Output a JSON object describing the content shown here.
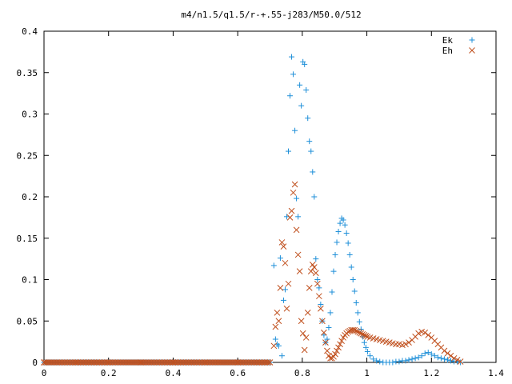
{
  "chart_data": {
    "type": "scatter",
    "title": "m4/n1.5/q1.5/r-+.55-j283/M50.0/512",
    "xlabel": "",
    "ylabel": "",
    "xlim": [
      0,
      1.4
    ],
    "ylim": [
      0,
      0.4
    ],
    "x_ticks": [
      "0",
      "0.2",
      "0.4",
      "0.6",
      "0.8",
      "1",
      "1.2",
      "1.4"
    ],
    "y_ticks": [
      "0",
      "0.05",
      "0.1",
      "0.15",
      "0.2",
      "0.25",
      "0.3",
      "0.35",
      "0.4"
    ],
    "grid": false,
    "legend_position": "top-right",
    "series": [
      {
        "name": "Ek",
        "marker": "plus",
        "color": "#1e8fd8",
        "x": [
          0.0,
          0.1,
          0.2,
          0.3,
          0.4,
          0.5,
          0.6,
          0.7,
          0.712,
          0.717,
          0.722,
          0.727,
          0.732,
          0.737,
          0.742,
          0.747,
          0.752,
          0.757,
          0.762,
          0.767,
          0.772,
          0.777,
          0.782,
          0.787,
          0.792,
          0.797,
          0.802,
          0.807,
          0.812,
          0.817,
          0.822,
          0.827,
          0.832,
          0.837,
          0.842,
          0.847,
          0.852,
          0.857,
          0.862,
          0.867,
          0.872,
          0.877,
          0.882,
          0.887,
          0.892,
          0.897,
          0.902,
          0.907,
          0.912,
          0.917,
          0.922,
          0.927,
          0.932,
          0.937,
          0.942,
          0.947,
          0.952,
          0.957,
          0.962,
          0.967,
          0.972,
          0.977,
          0.982,
          0.987,
          0.992,
          0.997,
          1.002,
          1.01,
          1.02,
          1.03,
          1.04,
          1.05,
          1.06,
          1.07,
          1.08,
          1.09,
          1.1,
          1.11,
          1.12,
          1.13,
          1.14,
          1.15,
          1.16,
          1.17,
          1.18,
          1.19,
          1.2,
          1.21,
          1.22,
          1.23,
          1.24,
          1.25,
          1.26,
          1.27,
          1.28,
          1.29
        ],
        "y": [
          0.0,
          0.0,
          0.0,
          0.0,
          0.0,
          0.0,
          0.0,
          0.0,
          0.117,
          0.028,
          0.022,
          0.02,
          0.126,
          0.008,
          0.075,
          0.088,
          0.176,
          0.255,
          0.322,
          0.369,
          0.348,
          0.28,
          0.198,
          0.176,
          0.335,
          0.31,
          0.363,
          0.36,
          0.329,
          0.295,
          0.267,
          0.255,
          0.23,
          0.2,
          0.125,
          0.1,
          0.09,
          0.07,
          0.05,
          0.033,
          0.024,
          0.028,
          0.042,
          0.06,
          0.085,
          0.11,
          0.13,
          0.145,
          0.158,
          0.168,
          0.174,
          0.172,
          0.166,
          0.156,
          0.144,
          0.13,
          0.115,
          0.1,
          0.086,
          0.072,
          0.06,
          0.049,
          0.04,
          0.031,
          0.024,
          0.018,
          0.013,
          0.008,
          0.004,
          0.002,
          0.001,
          0.0,
          0.0,
          0.0,
          0.0,
          0.001,
          0.001,
          0.002,
          0.002,
          0.003,
          0.004,
          0.005,
          0.006,
          0.008,
          0.011,
          0.012,
          0.01,
          0.008,
          0.006,
          0.005,
          0.004,
          0.003,
          0.002,
          0.001,
          0.001,
          0.0
        ]
      },
      {
        "name": "Eh",
        "marker": "cross",
        "color": "#c0501e",
        "x": [
          0.0,
          0.1,
          0.2,
          0.3,
          0.4,
          0.5,
          0.6,
          0.7,
          0.712,
          0.717,
          0.722,
          0.727,
          0.732,
          0.737,
          0.742,
          0.747,
          0.752,
          0.757,
          0.762,
          0.767,
          0.772,
          0.777,
          0.782,
          0.787,
          0.792,
          0.797,
          0.802,
          0.807,
          0.812,
          0.817,
          0.822,
          0.827,
          0.832,
          0.837,
          0.842,
          0.847,
          0.852,
          0.857,
          0.862,
          0.867,
          0.872,
          0.877,
          0.882,
          0.887,
          0.892,
          0.897,
          0.902,
          0.907,
          0.912,
          0.917,
          0.922,
          0.927,
          0.932,
          0.937,
          0.942,
          0.947,
          0.952,
          0.957,
          0.962,
          0.967,
          0.972,
          0.977,
          0.982,
          0.987,
          0.992,
          0.997,
          1.002,
          1.01,
          1.02,
          1.03,
          1.04,
          1.05,
          1.06,
          1.07,
          1.08,
          1.09,
          1.1,
          1.11,
          1.12,
          1.13,
          1.14,
          1.15,
          1.16,
          1.17,
          1.18,
          1.19,
          1.2,
          1.21,
          1.22,
          1.23,
          1.24,
          1.25,
          1.26,
          1.27,
          1.28,
          1.29
        ],
        "y": [
          0.0,
          0.0,
          0.0,
          0.0,
          0.0,
          0.0,
          0.0,
          0.0,
          0.02,
          0.043,
          0.06,
          0.05,
          0.09,
          0.145,
          0.14,
          0.12,
          0.065,
          0.095,
          0.175,
          0.183,
          0.205,
          0.215,
          0.16,
          0.13,
          0.11,
          0.05,
          0.035,
          0.015,
          0.03,
          0.06,
          0.09,
          0.11,
          0.118,
          0.115,
          0.108,
          0.095,
          0.08,
          0.065,
          0.05,
          0.036,
          0.024,
          0.014,
          0.008,
          0.005,
          0.005,
          0.007,
          0.01,
          0.014,
          0.018,
          0.022,
          0.026,
          0.03,
          0.033,
          0.035,
          0.037,
          0.038,
          0.039,
          0.039,
          0.039,
          0.038,
          0.037,
          0.036,
          0.035,
          0.034,
          0.033,
          0.032,
          0.031,
          0.03,
          0.029,
          0.028,
          0.027,
          0.026,
          0.025,
          0.024,
          0.023,
          0.022,
          0.022,
          0.021,
          0.022,
          0.024,
          0.027,
          0.031,
          0.035,
          0.037,
          0.036,
          0.033,
          0.03,
          0.026,
          0.022,
          0.018,
          0.014,
          0.011,
          0.008,
          0.005,
          0.003,
          0.001
        ]
      }
    ]
  }
}
